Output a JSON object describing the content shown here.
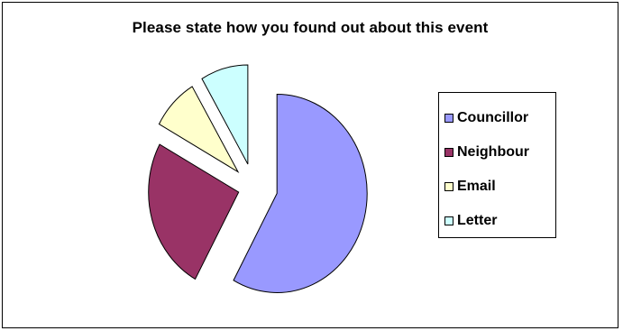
{
  "chart_data": {
    "type": "pie",
    "title": "Please state how you found out about this event",
    "legend_position": "right",
    "exploded": true,
    "slices": [
      {
        "label": "Councillor",
        "value": 58,
        "color": "#9999ff"
      },
      {
        "label": "Neighbour",
        "value": 25,
        "color": "#993366"
      },
      {
        "label": "Email",
        "value": 8.5,
        "color": "#ffffcc"
      },
      {
        "label": "Letter",
        "value": 8.5,
        "color": "#ccffff"
      }
    ]
  }
}
